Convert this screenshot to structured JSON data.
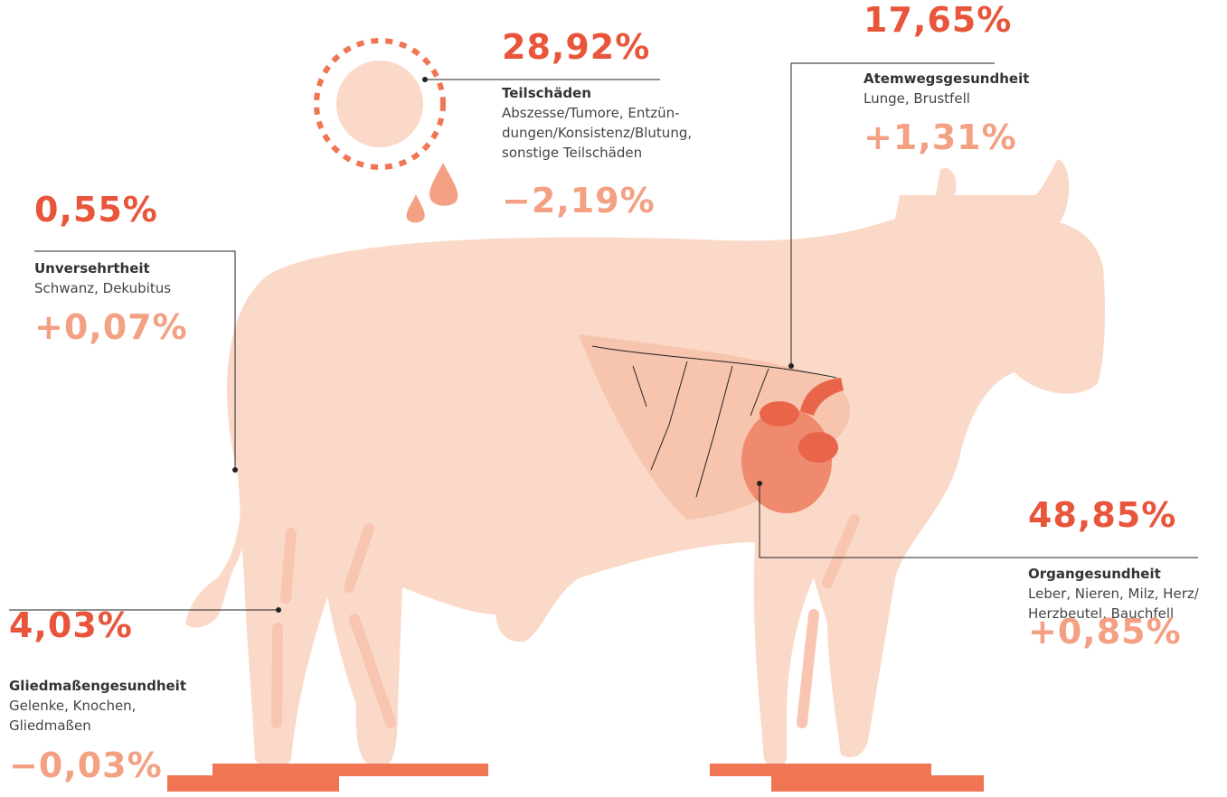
{
  "items": [
    {
      "value": "28,92%",
      "title": "Teilschäden",
      "description": [
        "Abszesse/Tumore, Entzün-",
        "dungen/Konsistenz/Blutung,",
        "sonstige Teilschäden"
      ],
      "change": "−2,19%"
    },
    {
      "value": "17,65%",
      "title": "Atemwegsgesundheit",
      "description": [
        "Lunge, Brustfell"
      ],
      "change": "+1,31%"
    },
    {
      "value": "0,55%",
      "title": "Unversehrtheit",
      "description": [
        "Schwanz, Dekubitus"
      ],
      "change": "+0,07%"
    },
    {
      "value": "48,85%",
      "title": "Organgesundheit",
      "description": [
        "Leber, Nieren, Milz, Herz/",
        "Herzbeutel, Bauchfell"
      ],
      "change": "+0,85%"
    },
    {
      "value": "4,03%",
      "title": "Gliedmaßengesundheit",
      "description": [
        "Gelenke, Knochen,",
        "Gliedmaßen"
      ],
      "change": "−0,03%"
    }
  ]
}
